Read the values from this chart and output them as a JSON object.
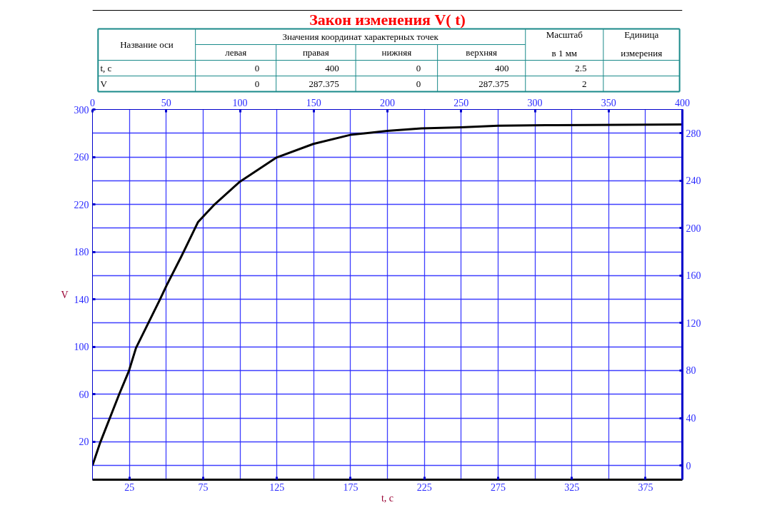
{
  "chart_data": {
    "type": "line",
    "title": "Закон изменения V( t)",
    "xlabel": "t, c",
    "ylabel": "V",
    "x": [
      0,
      5.3,
      18.2,
      24.7,
      29.5,
      45.4,
      50.2,
      60.2,
      71.5,
      82.8,
      99.8,
      124.8,
      149.8,
      174.8,
      199.8,
      223,
      249.9,
      275,
      314,
      400
    ],
    "series": [
      {
        "color": "#000000",
        "values": [
          0,
          19.5,
          60.3,
          79.6,
          99,
          139,
          151.6,
          176,
          205,
          220,
          239,
          259.5,
          271,
          278.6,
          282,
          284,
          285,
          286.3,
          286.8,
          287.375
        ]
      }
    ],
    "xlim": [
      0,
      400
    ],
    "xticks": [
      25,
      75,
      125,
      175,
      225,
      275,
      325,
      375
    ],
    "x2lim": [
      0,
      400
    ],
    "x2ticks": [
      0,
      50,
      100,
      150,
      200,
      250,
      300,
      350,
      400
    ],
    "ylim": [
      -12,
      300
    ],
    "yticks": [
      20,
      60,
      100,
      140,
      180,
      220,
      260,
      300
    ],
    "y2lim": [
      -12,
      300
    ],
    "y2ticks": [
      0,
      40,
      80,
      120,
      160,
      200,
      240,
      280
    ],
    "grid": true,
    "line_style": "solid",
    "marker": "none",
    "annotations": [
      "Название оси",
      "Значения координат характерных точек",
      "Масштаб",
      "в 1 мм",
      "Единица",
      "измерения",
      "левая",
      "правая",
      "нижняя",
      "верхняя",
      "t, c",
      "0",
      "400",
      "0",
      "400",
      "2.5",
      "V",
      "0",
      "287.375",
      "0",
      "287.375",
      "2"
    ]
  }
}
